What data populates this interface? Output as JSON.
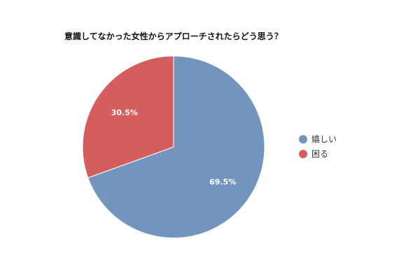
{
  "chart_data": {
    "type": "pie",
    "title": "意識してなかった女性からアプローチされたらどう思う？",
    "slices": [
      {
        "label": "嬉しい",
        "value": 69.5,
        "display": "69.5%",
        "color": "#7395BD"
      },
      {
        "label": "困る",
        "value": 30.5,
        "display": "30.5%",
        "color": "#D45E5E"
      }
    ],
    "start_angle_deg": 0,
    "direction": "clockwise",
    "legend_position": "right"
  }
}
